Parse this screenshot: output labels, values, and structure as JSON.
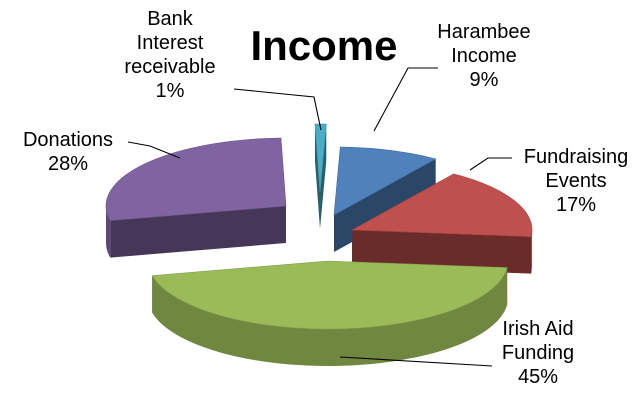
{
  "chart_data": {
    "type": "pie",
    "style": "3d-exploded",
    "title": "Income",
    "slices": [
      {
        "name": "Harambee Income",
        "lines": [
          "Harambee",
          "Income"
        ],
        "percent_label": "9%",
        "value": 9,
        "color": "#4f81bd"
      },
      {
        "name": "Fundraising Events",
        "lines": [
          "Fundraising",
          "Events"
        ],
        "percent_label": "17%",
        "value": 17,
        "color": "#c0504d"
      },
      {
        "name": "Irish Aid Funding",
        "lines": [
          "Irish Aid",
          "Funding"
        ],
        "percent_label": "45%",
        "value": 45,
        "color": "#9bbb59"
      },
      {
        "name": "Donations",
        "lines": [
          "Donations"
        ],
        "percent_label": "28%",
        "value": 28,
        "color": "#8064a2"
      },
      {
        "name": "Bank Interest receivable",
        "lines": [
          "Bank",
          "Interest",
          "receivable"
        ],
        "percent_label": "1%",
        "value": 1,
        "color": "#4bacc6"
      }
    ],
    "legend": "none",
    "label_style": "callout-with-leader-lines"
  }
}
